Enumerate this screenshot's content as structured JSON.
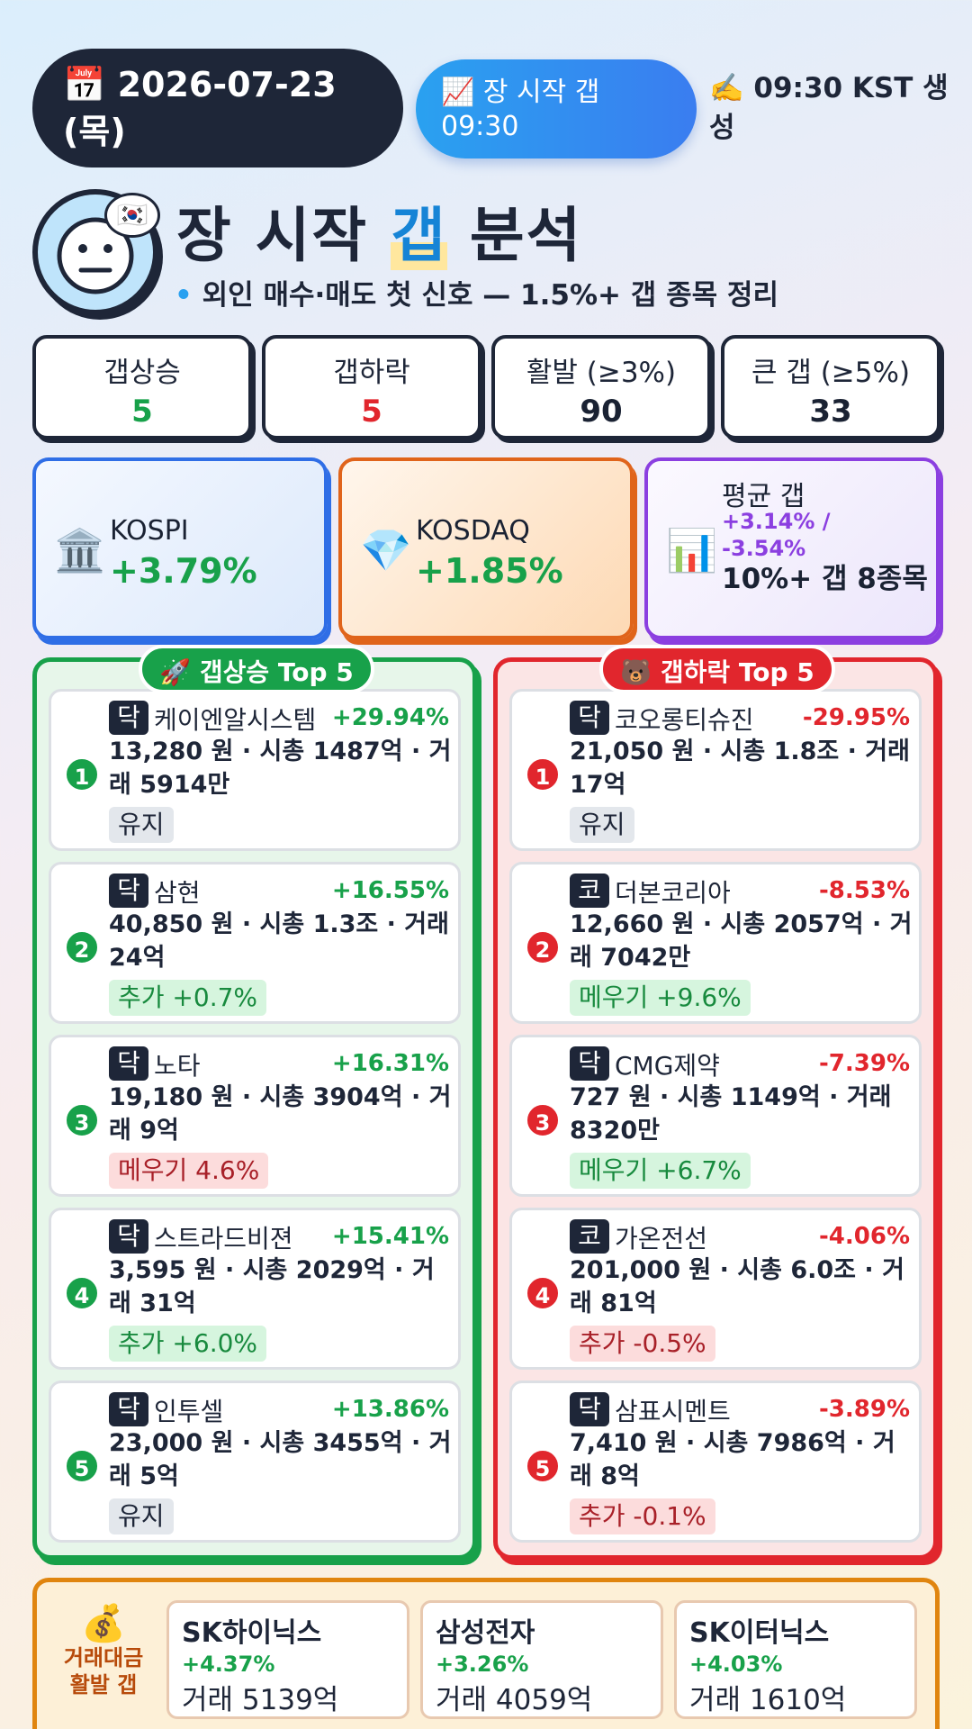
{
  "header": {
    "date_icon": "📅",
    "date": "2026-07-23",
    "weekday": "(목)",
    "session_icon": "📈",
    "session_label": "장 시작 갭",
    "session_time": "09:30",
    "gen_icon": "✍️",
    "gen_text": "09:30 KST 생성"
  },
  "title": {
    "flag_icon": "🇰🇷",
    "main_1": "장 시작 ",
    "main_hl": "갭",
    "main_2": " 분석",
    "subtitle": "외인 매수·매도 첫 신호 — 1.5%+ 갭 종목 정리"
  },
  "stats": [
    {
      "label": "갭상승",
      "value": "5",
      "color": "#18a14a"
    },
    {
      "label": "갭하락",
      "value": "5",
      "color": "#e1262d"
    },
    {
      "label": "활발 (≥3%)",
      "value": "90",
      "color": "#1e2638"
    },
    {
      "label": "큰 갭 (≥5%)",
      "value": "33",
      "color": "#1e2638"
    }
  ],
  "indices": {
    "kospi": {
      "icon": "🏛️",
      "name": "KOSPI",
      "pct": "+3.79%"
    },
    "kosdaq": {
      "icon": "💎",
      "name": "KOSDAQ",
      "pct": "+1.85%"
    },
    "avg": {
      "icon": "📊",
      "name": "평균 갭",
      "pct": "+3.14% / -3.54%",
      "count": "10%+ 갭 8종목"
    }
  },
  "gap_up": {
    "title": "🚀 갭상승 Top 5",
    "items": [
      {
        "rank": "1",
        "market": "닥",
        "name": "케이엔알시스템",
        "pct": "+29.94%",
        "info": "13,280 원 · 시총 1487억 · 거래 5914만",
        "tag": "유지",
        "tag_type": "hold"
      },
      {
        "rank": "2",
        "market": "닥",
        "name": "삼현",
        "pct": "+16.55%",
        "info": "40,850 원 · 시총 1.3조 · 거래 24억",
        "tag": "추가 +0.7%",
        "tag_type": "green"
      },
      {
        "rank": "3",
        "market": "닥",
        "name": "노타",
        "pct": "+16.31%",
        "info": "19,180 원 · 시총 3904억 · 거래 9억",
        "tag": "메우기 4.6%",
        "tag_type": "red"
      },
      {
        "rank": "4",
        "market": "닥",
        "name": "스트라드비젼",
        "pct": "+15.41%",
        "info": "3,595 원 · 시총 2029억 · 거래 31억",
        "tag": "추가 +6.0%",
        "tag_type": "green"
      },
      {
        "rank": "5",
        "market": "닥",
        "name": "인투셀",
        "pct": "+13.86%",
        "info": "23,000 원 · 시총 3455억 · 거래 5억",
        "tag": "유지",
        "tag_type": "hold"
      }
    ]
  },
  "gap_down": {
    "title": "🐻 갭하락 Top 5",
    "items": [
      {
        "rank": "1",
        "market": "닥",
        "name": "코오롱티슈진",
        "pct": "-29.95%",
        "info": "21,050 원 · 시총 1.8조 · 거래 17억",
        "tag": "유지",
        "tag_type": "hold"
      },
      {
        "rank": "2",
        "market": "코",
        "name": "더본코리아",
        "pct": "-8.53%",
        "info": "12,660 원 · 시총 2057억 · 거래 7042만",
        "tag": "메우기 +9.6%",
        "tag_type": "green"
      },
      {
        "rank": "3",
        "market": "닥",
        "name": "CMG제약",
        "pct": "-7.39%",
        "info": "727 원 · 시총 1149억 · 거래 8320만",
        "tag": "메우기 +6.7%",
        "tag_type": "green"
      },
      {
        "rank": "4",
        "market": "코",
        "name": "가온전선",
        "pct": "-4.06%",
        "info": "201,000 원 · 시총 6.0조 · 거래 81억",
        "tag": "추가 -0.5%",
        "tag_type": "red"
      },
      {
        "rank": "5",
        "market": "닥",
        "name": "삼표시멘트",
        "pct": "-3.89%",
        "info": "7,410 원 · 시총 7986억 · 거래 8억",
        "tag": "추가 -0.1%",
        "tag_type": "red"
      }
    ]
  },
  "volume": {
    "icon": "💰",
    "title_1": "거래대금",
    "title_2": "활발 갭",
    "items": [
      {
        "name": "SK하이닉스",
        "pct": "+4.37%",
        "value": "거래 5139억"
      },
      {
        "name": "삼성전자",
        "pct": "+3.26%",
        "value": "거래 4059억"
      },
      {
        "name": "SK이터닉스",
        "pct": "+4.03%",
        "value": "거래 1610억"
      }
    ]
  }
}
